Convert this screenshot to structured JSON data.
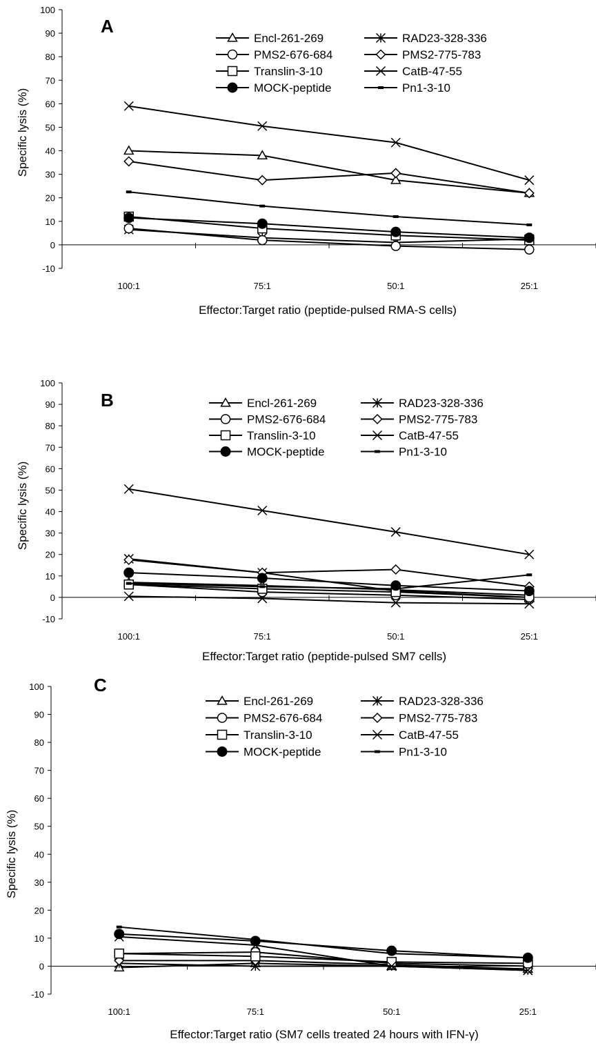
{
  "chart_data": [
    {
      "type": "line",
      "panel_label": "A",
      "xlabel": "Effector:Target ratio (peptide-pulsed RMA-S cells)",
      "ylabel": "Specific lysis (%)",
      "categories": [
        "100:1",
        "75:1",
        "50:1",
        "25:1"
      ],
      "ylim": [
        -10,
        100
      ],
      "yticks": [
        -10,
        0,
        10,
        20,
        30,
        40,
        50,
        60,
        70,
        80,
        90,
        100
      ],
      "grid": false,
      "legend_position": "top",
      "series": [
        {
          "name": "Encl-261-269",
          "marker": "triangle",
          "values": [
            40,
            38,
            27.5,
            22
          ]
        },
        {
          "name": "RAD23-328-336",
          "marker": "asterisk",
          "values": [
            6.5,
            3,
            1,
            2.5
          ]
        },
        {
          "name": "PMS2-676-684",
          "marker": "circle-open",
          "values": [
            7,
            2,
            -0.5,
            -2
          ]
        },
        {
          "name": "PMS2-775-783",
          "marker": "diamond",
          "values": [
            35.5,
            27.5,
            30.5,
            22
          ]
        },
        {
          "name": "Translin-3-10",
          "marker": "square",
          "values": [
            12,
            7,
            4,
            2
          ]
        },
        {
          "name": "CatB-47-55",
          "marker": "x",
          "values": [
            59,
            50.5,
            43.5,
            27.5
          ]
        },
        {
          "name": "MOCK-peptide",
          "marker": "circle-filled",
          "values": [
            11.5,
            9,
            5.5,
            3
          ]
        },
        {
          "name": "Pn1-3-10",
          "marker": "dash",
          "values": [
            22.5,
            16.5,
            12,
            8.5
          ]
        }
      ]
    },
    {
      "type": "line",
      "panel_label": "B",
      "xlabel": "Effector:Target ratio (peptide-pulsed SM7 cells)",
      "ylabel": "Specific lysis (%)",
      "categories": [
        "100:1",
        "75:1",
        "50:1",
        "25:1"
      ],
      "ylim": [
        -10,
        100
      ],
      "yticks": [
        -10,
        0,
        10,
        20,
        30,
        40,
        50,
        60,
        70,
        80,
        90,
        100
      ],
      "grid": false,
      "legend_position": "top",
      "series": [
        {
          "name": "Encl-261-269",
          "marker": "triangle",
          "values": [
            7,
            5.5,
            3.5,
            1
          ]
        },
        {
          "name": "RAD23-328-336",
          "marker": "asterisk",
          "values": [
            18,
            11.5,
            3,
            0
          ]
        },
        {
          "name": "PMS2-676-684",
          "marker": "circle-open",
          "values": [
            6,
            2.5,
            1,
            -1
          ]
        },
        {
          "name": "PMS2-775-783",
          "marker": "diamond",
          "values": [
            17.5,
            11.5,
            13,
            5
          ]
        },
        {
          "name": "Translin-3-10",
          "marker": "square",
          "values": [
            6,
            4,
            2.5,
            0
          ]
        },
        {
          "name": "CatB-47-55",
          "marker": "x",
          "values": [
            50.5,
            40.5,
            30.5,
            20
          ]
        },
        {
          "name": "MOCK-peptide",
          "marker": "circle-filled",
          "values": [
            11.5,
            9,
            5.5,
            3
          ]
        },
        {
          "name": "Pn1-3-10",
          "marker": "dash",
          "values": [
            6.5,
            5,
            4,
            10.5
          ]
        },
        {
          "name": "",
          "marker": "x",
          "values": [
            0.5,
            -0.5,
            -2.5,
            -3
          ]
        }
      ]
    },
    {
      "type": "line",
      "panel_label": "C",
      "xlabel": "Effector:Target ratio (SM7 cells treated 24 hours with IFN-γ)",
      "ylabel": "Specific lysis (%)",
      "categories": [
        "100:1",
        "75:1",
        "50:1",
        "25:1"
      ],
      "ylim": [
        -10,
        100
      ],
      "yticks": [
        -10,
        0,
        10,
        20,
        30,
        40,
        50,
        60,
        70,
        80,
        90,
        100
      ],
      "grid": false,
      "legend_position": "top",
      "series": [
        {
          "name": "Encl-261-269",
          "marker": "triangle",
          "values": [
            -0.5,
            1,
            0,
            -1
          ]
        },
        {
          "name": "RAD23-328-336",
          "marker": "asterisk",
          "values": [
            1,
            0,
            0,
            -1.5
          ]
        },
        {
          "name": "PMS2-676-684",
          "marker": "circle-open",
          "values": [
            4.5,
            5,
            1,
            0
          ]
        },
        {
          "name": "PMS2-775-783",
          "marker": "diamond",
          "values": [
            2,
            2,
            0.5,
            -1
          ]
        },
        {
          "name": "Translin-3-10",
          "marker": "square",
          "values": [
            4.5,
            3.5,
            1.5,
            1
          ]
        },
        {
          "name": "CatB-47-55",
          "marker": "x",
          "values": [
            10.5,
            7.5,
            0,
            -1.5
          ]
        },
        {
          "name": "MOCK-peptide",
          "marker": "circle-filled",
          "values": [
            11.5,
            9,
            5.5,
            3
          ]
        },
        {
          "name": "Pn1-3-10",
          "marker": "dash",
          "values": [
            14,
            9.5,
            4.5,
            3
          ]
        }
      ]
    }
  ]
}
